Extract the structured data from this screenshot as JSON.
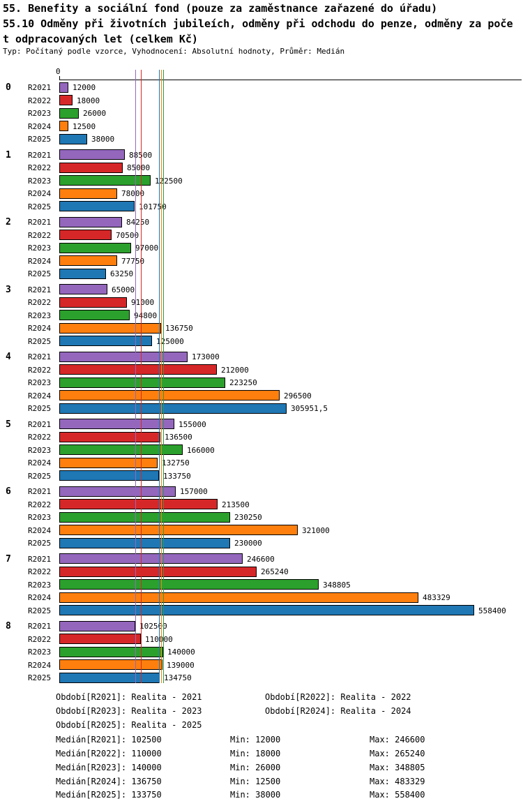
{
  "header": {
    "line1": "55. Benefity a sociální fond (pouze za zaměstnance zařazené do úřadu)",
    "line2": "55.10 Odměny při životních jubileích, odměny při odchodu do penze, odměny za poče",
    "line3": "t odpracovaných let (celkem Kč)",
    "meta": "Typ: Počítaný podle vzorce, Vyhodnocení: Absolutní hodnoty, Průměr: Medián"
  },
  "chart_data": {
    "type": "bar",
    "orientation": "horizontal",
    "axis_zero_label": "0",
    "xlim": [
      0,
      558400
    ],
    "grid": false,
    "categories": [
      "0",
      "1",
      "2",
      "3",
      "4",
      "5",
      "6",
      "7",
      "8"
    ],
    "series": [
      {
        "name": "R2021",
        "color": "#9467bd",
        "values": [
          12000,
          88500,
          84250,
          65000,
          173000,
          155000,
          157000,
          246600,
          102500
        ],
        "value_labels": [
          "12000",
          "88500",
          "84250",
          "65000",
          "173000",
          "155000",
          "157000",
          "246600",
          "102500"
        ]
      },
      {
        "name": "R2022",
        "color": "#d62728",
        "values": [
          18000,
          85000,
          70500,
          91000,
          212000,
          136500,
          213500,
          265240,
          110000
        ],
        "value_labels": [
          "18000",
          "85000",
          "70500",
          "91000",
          "212000",
          "136500",
          "213500",
          "265240",
          "110000"
        ]
      },
      {
        "name": "R2023",
        "color": "#2ca02c",
        "values": [
          26000,
          122500,
          97000,
          94800,
          223250,
          166000,
          230250,
          348805,
          140000
        ],
        "value_labels": [
          "26000",
          "122500",
          "97000",
          "94800",
          "223250",
          "166000",
          "230250",
          "348805",
          "140000"
        ]
      },
      {
        "name": "R2024",
        "color": "#ff7f0e",
        "values": [
          12500,
          78000,
          77750,
          136750,
          296500,
          132750,
          321000,
          483329,
          139000
        ],
        "value_labels": [
          "12500",
          "78000",
          "77750",
          "136750",
          "296500",
          "132750",
          "321000",
          "483329",
          "139000"
        ]
      },
      {
        "name": "R2025",
        "color": "#1f77b4",
        "values": [
          38000,
          101750,
          63250,
          125000,
          305951.5,
          133750,
          230000,
          558400,
          134750
        ],
        "value_labels": [
          "38000",
          "101750",
          "63250",
          "125000",
          "305951,5",
          "133750",
          "230000",
          "558400",
          "134750"
        ]
      }
    ],
    "medians": [
      {
        "series": "R2021",
        "value": 102500
      },
      {
        "series": "R2022",
        "value": 110000
      },
      {
        "series": "R2023",
        "value": 140000
      },
      {
        "series": "R2024",
        "value": 136750
      },
      {
        "series": "R2025",
        "value": 133750
      }
    ]
  },
  "footer": {
    "legend": [
      {
        "text": "Období[R2021]: Realita - 2021"
      },
      {
        "text": "Období[R2022]: Realita - 2022"
      },
      {
        "text": "Období[R2023]: Realita - 2023"
      },
      {
        "text": "Období[R2024]: Realita - 2024"
      },
      {
        "text": "Období[R2025]: Realita - 2025"
      }
    ],
    "stats": [
      {
        "median": "Medián[R2021]: 102500",
        "min": "Min: 12000",
        "max": "Max: 246600"
      },
      {
        "median": "Medián[R2022]: 110000",
        "min": "Min: 18000",
        "max": "Max: 265240"
      },
      {
        "median": "Medián[R2023]: 140000",
        "min": "Min: 26000",
        "max": "Max: 348805"
      },
      {
        "median": "Medián[R2024]: 136750",
        "min": "Min: 12500",
        "max": "Max: 483329"
      },
      {
        "median": "Medián[R2025]: 133750",
        "min": "Min: 38000",
        "max": "Max: 558400"
      }
    ]
  }
}
